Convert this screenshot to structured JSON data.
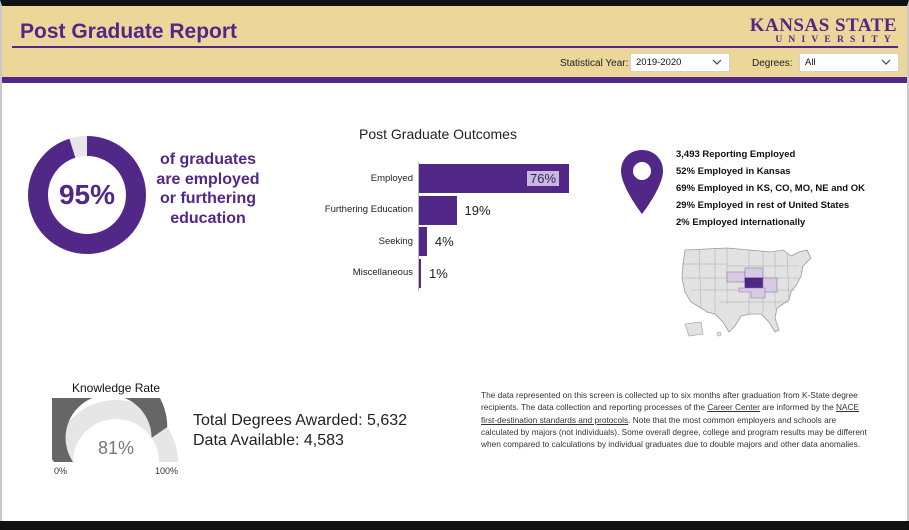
{
  "header": {
    "title": "Post Graduate Report",
    "logo_top": "KANSAS STATE",
    "logo_bottom": "UNIVERSITY",
    "filters": {
      "year_label": "Statistical Year:",
      "year_value": "2019-2020",
      "degrees_label": "Degrees:",
      "degrees_value": "All"
    }
  },
  "summary": {
    "percent_text": "95%",
    "percent_value": 95,
    "caption_lines": [
      "of graduates",
      "are employed",
      "or furthering",
      "education"
    ]
  },
  "outcomes": {
    "chart_title": "Post Graduate Outcomes"
  },
  "location": {
    "stats": [
      "3,493 Reporting Employed",
      "52% Employed in Kansas",
      "69% Employed in KS, CO, MO, NE and OK",
      "29% Employed in rest of United States",
      "2% Employed internationally"
    ]
  },
  "knowledge": {
    "title": "Knowledge Rate",
    "value_text": "81%",
    "value": 81,
    "min_label": "0%",
    "max_label": "100%"
  },
  "totals": {
    "degrees_awarded": "Total Degrees Awarded: 5,632",
    "data_available": "Data Available: 4,583"
  },
  "note": {
    "part1": "The data represented on this screen is collected up to six months after graduation from K-State degree recipients. The data collection and reporting processes of the ",
    "link1": "Career Center",
    "part2": " are informed by the ",
    "link2": "NACE first-destination standards and protocols",
    "part3": ". Note that the most common employers and schools are calculated by majors (not individuals). Some overall degree, college and program results may be different when compared to calculations by individual graduates due to double majors and other data anomalies."
  },
  "colors": {
    "purple": "#512888",
    "gold": "#ecd699",
    "track": "#e6e6e6",
    "gauge_fill": "#666666"
  },
  "chart_data": {
    "type": "bar",
    "title": "Post Graduate Outcomes",
    "orientation": "horizontal",
    "categories": [
      "Employed",
      "Furthering Education",
      "Seeking",
      "Miscellaneous"
    ],
    "values": [
      76,
      19,
      4,
      1
    ],
    "labels": [
      "76%",
      "19%",
      "4%",
      "1%"
    ],
    "xlim": [
      0,
      76
    ]
  }
}
